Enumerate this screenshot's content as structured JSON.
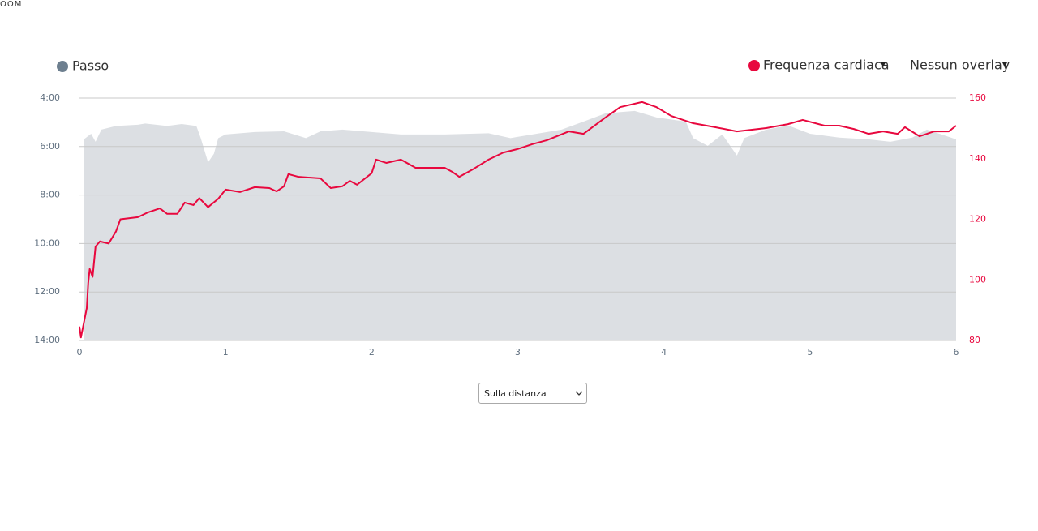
{
  "header": {
    "text": "OOM"
  },
  "controls": {
    "overlay_menu": "Nessun overlay",
    "x_mode_select": "Sulla distanza"
  },
  "chart_data": {
    "type": "combo",
    "xlim": [
      0,
      6
    ],
    "xticks": [
      0,
      1,
      2,
      3,
      4,
      5,
      6
    ],
    "ylim": [
      14,
      4
    ],
    "yticks": [
      {
        "value": 4,
        "label": "4:00"
      },
      {
        "value": 6,
        "label": "6:00"
      },
      {
        "value": 8,
        "label": "8:00"
      },
      {
        "value": 10,
        "label": "10:00"
      },
      {
        "value": 12,
        "label": "12:00"
      },
      {
        "value": 14,
        "label": "14:00"
      }
    ],
    "y2lim": [
      80,
      160
    ],
    "y2ticks": [
      80,
      100,
      120,
      140,
      160
    ],
    "grid": true,
    "series": [
      {
        "name": "Passo",
        "type": "area",
        "color": "#dcdfe3",
        "legend_color": "#6d7f8f",
        "x": [
          0.03,
          0.08,
          0.11,
          0.15,
          0.25,
          0.4,
          0.45,
          0.6,
          0.7,
          0.8,
          0.83,
          0.88,
          0.92,
          0.95,
          1.0,
          1.2,
          1.4,
          1.55,
          1.65,
          1.8,
          2.0,
          2.2,
          2.5,
          2.8,
          2.95,
          3.1,
          3.3,
          3.45,
          3.6,
          3.8,
          3.95,
          4.15,
          4.2,
          4.3,
          4.4,
          4.5,
          4.55,
          4.7,
          4.85,
          5.0,
          5.2,
          5.4,
          5.55,
          5.7,
          5.8,
          6.0
        ],
        "values": [
          5.7,
          5.47,
          5.8,
          5.3,
          5.15,
          5.1,
          5.05,
          5.15,
          5.07,
          5.15,
          5.65,
          6.65,
          6.3,
          5.65,
          5.5,
          5.4,
          5.37,
          5.65,
          5.37,
          5.3,
          5.4,
          5.5,
          5.5,
          5.45,
          5.65,
          5.5,
          5.3,
          4.97,
          4.63,
          4.53,
          4.8,
          4.97,
          5.65,
          5.97,
          5.5,
          6.37,
          5.65,
          5.3,
          5.13,
          5.47,
          5.63,
          5.7,
          5.8,
          5.63,
          5.3,
          5.7
        ]
      },
      {
        "name": "Frequenza cardiaca",
        "type": "line",
        "axis": "y2",
        "color": "#e8083e",
        "x": [
          0,
          0.01,
          0.05,
          0.06,
          0.07,
          0.09,
          0.11,
          0.14,
          0.2,
          0.25,
          0.28,
          0.4,
          0.47,
          0.55,
          0.6,
          0.67,
          0.72,
          0.78,
          0.82,
          0.88,
          0.95,
          1.0,
          1.1,
          1.2,
          1.3,
          1.35,
          1.4,
          1.43,
          1.5,
          1.65,
          1.72,
          1.8,
          1.85,
          1.9,
          2.0,
          2.03,
          2.1,
          2.2,
          2.3,
          2.5,
          2.55,
          2.6,
          2.7,
          2.8,
          2.9,
          3.0,
          3.1,
          3.2,
          3.35,
          3.45,
          3.6,
          3.7,
          3.85,
          3.95,
          4.05,
          4.2,
          4.35,
          4.5,
          4.7,
          4.85,
          4.95,
          5.1,
          5.2,
          5.3,
          5.4,
          5.5,
          5.6,
          5.65,
          5.75,
          5.85,
          5.95,
          6.0
        ],
        "values": [
          84.6,
          81,
          90.7,
          99,
          103.6,
          101,
          111,
          112.7,
          112,
          116,
          120,
          120.7,
          122.3,
          123.6,
          121.8,
          121.8,
          125.5,
          124.7,
          127,
          124,
          126.8,
          129.8,
          129,
          130.6,
          130.3,
          129.2,
          130.9,
          134.9,
          134,
          133.5,
          130.3,
          130.9,
          132.7,
          131.4,
          135.2,
          139.7,
          138.6,
          139.7,
          137,
          137,
          135.7,
          134,
          136.7,
          139.7,
          142,
          143.2,
          144.8,
          146.1,
          149,
          148.2,
          153.6,
          157,
          158.7,
          157,
          154.1,
          151.7,
          150.4,
          149,
          150.1,
          151.4,
          152.8,
          150.9,
          150.9,
          149.8,
          148.2,
          149,
          148.2,
          150.4,
          147.4,
          149,
          149,
          150.9
        ]
      }
    ]
  }
}
